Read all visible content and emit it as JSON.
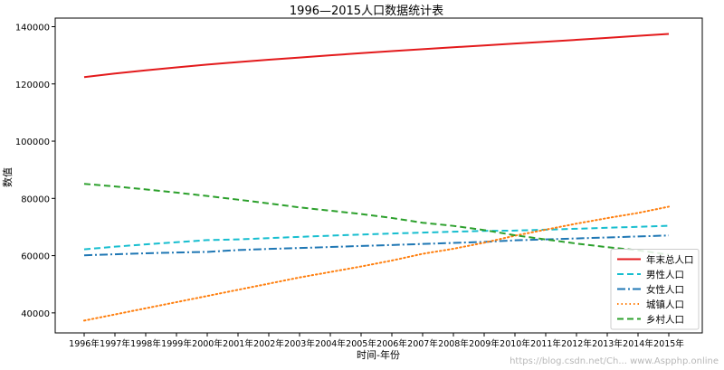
{
  "chart_data": {
    "type": "line",
    "title": "1996—2015人口数据统计表",
    "xlabel": "时间-年份",
    "ylabel": "数值",
    "categories": [
      "1996年",
      "1997年",
      "1998年",
      "1999年",
      "2000年",
      "2001年",
      "2002年",
      "2003年",
      "2004年",
      "2005年",
      "2006年",
      "2007年",
      "2008年",
      "2009年",
      "2010年",
      "2011年",
      "2012年",
      "2013年",
      "2014年",
      "2015年"
    ],
    "ylim": [
      33000,
      143000
    ],
    "yticks": [
      40000,
      60000,
      80000,
      100000,
      120000,
      140000
    ],
    "grid": false,
    "legend_position": "lower-right",
    "series": [
      {
        "name": "年末总人口",
        "color": "#e31a1c",
        "style": "solid",
        "values": [
          122389,
          123626,
          124761,
          125786,
          126743,
          127627,
          128453,
          129227,
          129988,
          130756,
          131448,
          132129,
          132802,
          133450,
          134091,
          134735,
          135404,
          136072,
          136782,
          137462
        ]
      },
      {
        "name": "男性人口",
        "color": "#17becf",
        "style": "dashed",
        "values": [
          62200,
          63131,
          63940,
          64692,
          65437,
          65672,
          66115,
          66556,
          66976,
          67375,
          67728,
          68048,
          68357,
          68647,
          68748,
          69068,
          69395,
          69728,
          70079,
          70414
        ]
      },
      {
        "name": "女性人口",
        "color": "#1f77b4",
        "style": "dashdot",
        "values": [
          60123,
          60472,
          60821,
          61094,
          61306,
          61955,
          62338,
          62671,
          63012,
          63381,
          63720,
          64081,
          64445,
          64803,
          65343,
          65667,
          66009,
          66344,
          66703,
          67048
        ]
      },
      {
        "name": "城镇人口",
        "color": "#ff7f0e",
        "style": "dotted",
        "values": [
          37304,
          39449,
          41608,
          43748,
          45906,
          48064,
          50212,
          52376,
          54283,
          56212,
          58288,
          60633,
          62403,
          64512,
          66978,
          69079,
          71182,
          73111,
          74916,
          77116
        ]
      },
      {
        "name": "乡村人口",
        "color": "#2ca02c",
        "style": "dashed",
        "values": [
          85085,
          84177,
          83153,
          82038,
          80837,
          79563,
          78241,
          76851,
          75705,
          74544,
          73160,
          71496,
          70399,
          68938,
          67113,
          65656,
          64222,
          62961,
          61866,
          60346
        ]
      }
    ]
  },
  "watermark": "https://blog.csdn.net/Ch... www.Aspphp.online"
}
